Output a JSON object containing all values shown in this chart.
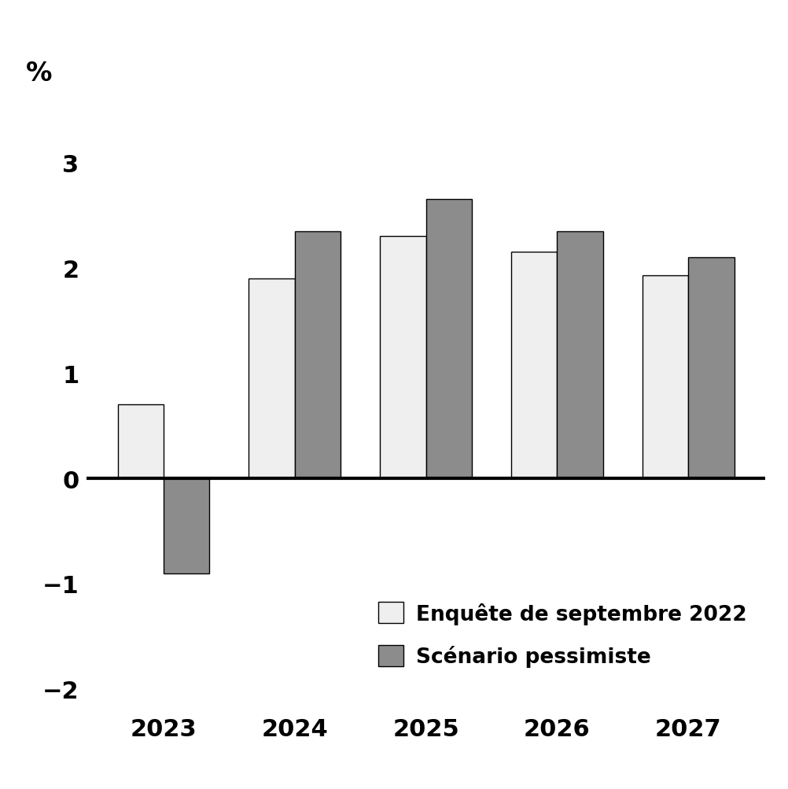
{
  "years": [
    2023,
    2024,
    2025,
    2026,
    2027
  ],
  "serie1": [
    0.7,
    1.9,
    2.3,
    2.15,
    1.93
  ],
  "serie2": [
    -0.9,
    2.35,
    2.65,
    2.35,
    2.1
  ],
  "serie1_color": "#efefef",
  "serie2_color": "#8c8c8c",
  "bar_edgecolor": "#000000",
  "zero_line_color": "#000000",
  "ylabel": "%",
  "ylim": [
    -2.2,
    3.5
  ],
  "yticks": [
    -2,
    -1,
    0,
    1,
    2,
    3
  ],
  "legend_label1": "Enquête de septembre 2022",
  "legend_label2": "Scénario pessimiste",
  "bar_width": 0.35,
  "background_color": "#ffffff"
}
